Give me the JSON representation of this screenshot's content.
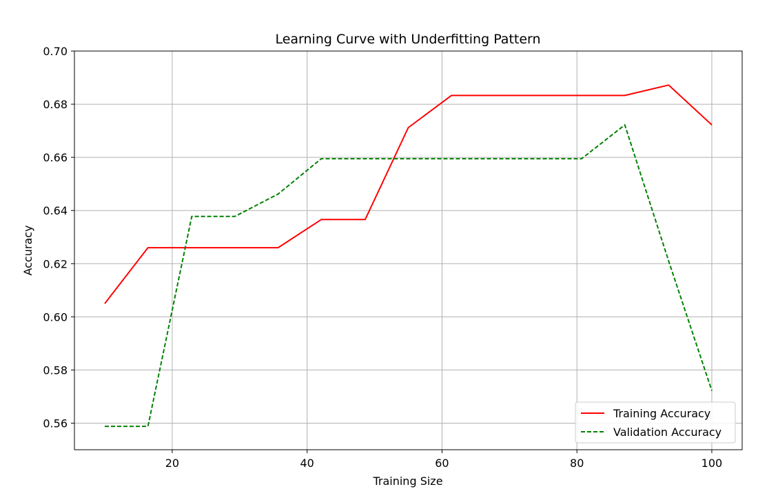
{
  "chart_data": {
    "type": "line",
    "title": "Learning Curve with Underfitting Pattern",
    "xlabel": "Training Size",
    "ylabel": "Accuracy",
    "xlim": [
      5.5,
      104.5
    ],
    "ylim": [
      0.55,
      0.7
    ],
    "xticks": [
      20,
      40,
      60,
      80,
      100
    ],
    "yticks": [
      0.56,
      0.58,
      0.6,
      0.62,
      0.64,
      0.66,
      0.68,
      0.7
    ],
    "xtick_labels": [
      "20",
      "40",
      "60",
      "80",
      "100"
    ],
    "ytick_labels": [
      "0.56",
      "0.58",
      "0.60",
      "0.62",
      "0.64",
      "0.66",
      "0.68",
      "0.70"
    ],
    "grid": true,
    "legend_position": "lower-right",
    "x": [
      10,
      16.4,
      22.9,
      29.3,
      35.7,
      42.1,
      48.6,
      55.0,
      61.4,
      67.9,
      74.3,
      80.7,
      87.1,
      93.6,
      100
    ],
    "series": [
      {
        "name": "Training Accuracy",
        "color": "#ff0000",
        "line_style": "solid",
        "values": [
          0.605,
          0.626,
          0.626,
          0.626,
          0.626,
          0.6366,
          0.6366,
          0.6712,
          0.6833,
          0.6833,
          0.6833,
          0.6833,
          0.6833,
          0.6872,
          0.6722
        ]
      },
      {
        "name": "Validation Accuracy",
        "color": "#008000",
        "line_style": "dashed",
        "values": [
          0.5588,
          0.5588,
          0.6378,
          0.6378,
          0.6462,
          0.6595,
          0.6595,
          0.6595,
          0.6595,
          0.6595,
          0.6595,
          0.6595,
          0.6722,
          0.621,
          0.5722
        ]
      }
    ]
  }
}
